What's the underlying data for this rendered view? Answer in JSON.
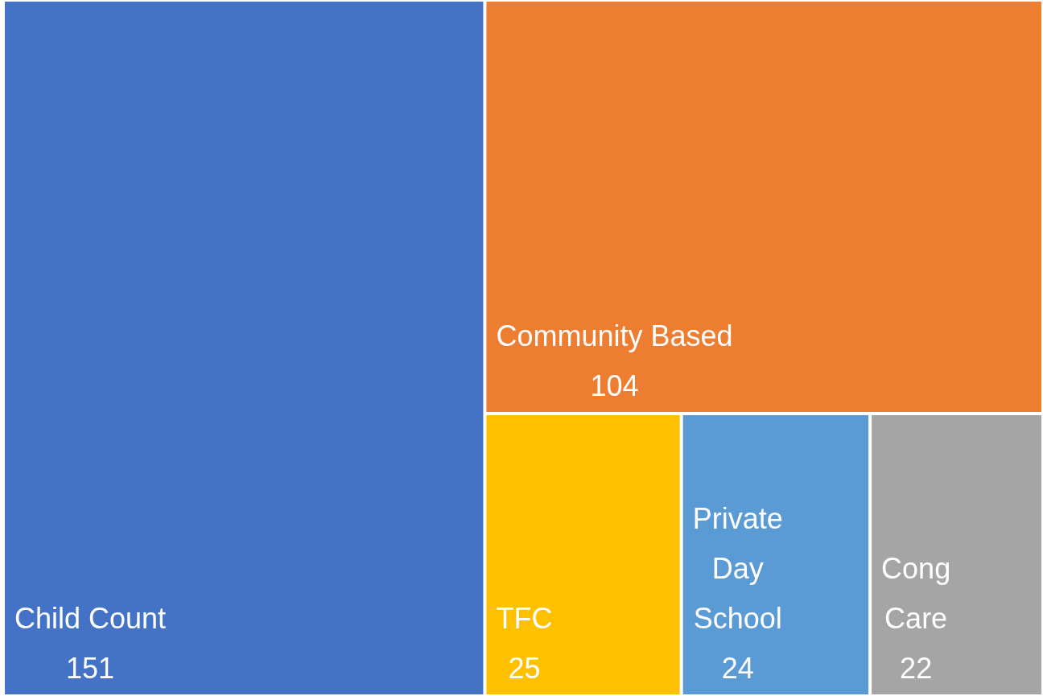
{
  "chart_data": {
    "type": "other",
    "categories": [
      "Child Count",
      "Community Based",
      "TFC",
      "Private Day School",
      "Cong Care"
    ],
    "values": [
      151,
      104,
      25,
      24,
      22
    ],
    "data_labels": true,
    "colors": [
      "#4472c4",
      "#ed7d31",
      "#ffc000",
      "#5b9bd5",
      "#a5a5a5"
    ]
  }
}
